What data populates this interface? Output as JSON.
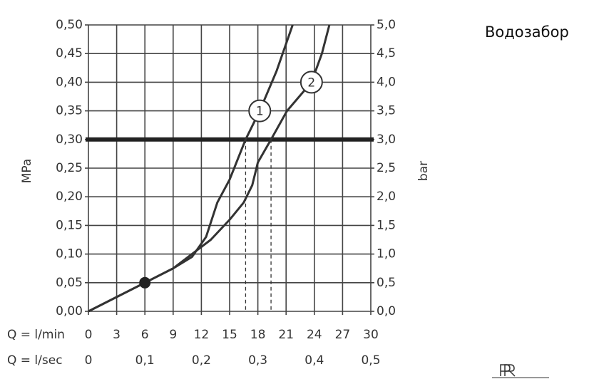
{
  "chart_data": {
    "type": "line",
    "title": "Водозабор",
    "x_label": "Q = l/min",
    "x2_label": "Q = l/sec",
    "y_label": "MPa",
    "y2_label": "bar",
    "xlim": [
      0,
      30
    ],
    "xticks": [
      0,
      3,
      6,
      9,
      12,
      15,
      18,
      21,
      24,
      27,
      30
    ],
    "x2lim": [
      0,
      0.5
    ],
    "x2ticks": [
      0,
      {
        "value": 0.1,
        "label": "0,1"
      },
      {
        "value": 0.2,
        "label": "0,2"
      },
      {
        "value": 0.3,
        "label": "0,3"
      },
      {
        "value": 0.4,
        "label": "0,4"
      },
      {
        "value": 0.5,
        "label": "0,5"
      }
    ],
    "ylim": [
      0,
      0.5
    ],
    "yticks": [
      {
        "value": 0,
        "label": "0,00"
      },
      {
        "value": 0.05,
        "label": "0,05"
      },
      {
        "value": 0.1,
        "label": "0,10"
      },
      {
        "value": 0.15,
        "label": "0,15"
      },
      {
        "value": 0.2,
        "label": "0,20"
      },
      {
        "value": 0.25,
        "label": "0,25"
      },
      {
        "value": 0.3,
        "label": "0,30"
      },
      {
        "value": 0.35,
        "label": "0,35"
      },
      {
        "value": 0.4,
        "label": "0,40"
      },
      {
        "value": 0.45,
        "label": "0,45"
      },
      {
        "value": 0.5,
        "label": "0,50"
      }
    ],
    "y2lim": [
      0,
      5
    ],
    "y2ticks": [
      {
        "value": 0,
        "label": "0,0"
      },
      {
        "value": 0.5,
        "label": "0,5"
      },
      {
        "value": 1,
        "label": "1,0"
      },
      {
        "value": 1.5,
        "label": "1,5"
      },
      {
        "value": 2,
        "label": "2,0"
      },
      {
        "value": 2.5,
        "label": "2,5"
      },
      {
        "value": 3,
        "label": "3,0"
      },
      {
        "value": 3.5,
        "label": "3,5"
      },
      {
        "value": 4,
        "label": "4,0"
      },
      {
        "value": 4.5,
        "label": "4,5"
      },
      {
        "value": 5,
        "label": "5,0"
      }
    ],
    "grid": true,
    "reference_line": 0.3,
    "drop_lines": [
      16.7,
      19.4
    ],
    "marker": {
      "x": 6,
      "y": 0.05
    },
    "series": [
      {
        "name": "1",
        "color": "#333333",
        "x": [
          0,
          6,
          9,
          11,
          12.5,
          13.7,
          15,
          16.7,
          18.2,
          20,
          21.7
        ],
        "values": [
          0,
          0.05,
          0.075,
          0.095,
          0.13,
          0.19,
          0.23,
          0.3,
          0.35,
          0.42,
          0.5
        ]
      },
      {
        "name": "2",
        "color": "#333333",
        "x": [
          0,
          6,
          9,
          11,
          13,
          15,
          16.5,
          17.4,
          18,
          19.4,
          21.1,
          23.7,
          24.8,
          25.6
        ],
        "values": [
          0,
          0.05,
          0.075,
          0.1,
          0.125,
          0.16,
          0.19,
          0.22,
          0.26,
          0.3,
          0.35,
          0.4,
          0.45,
          0.5
        ]
      }
    ]
  }
}
